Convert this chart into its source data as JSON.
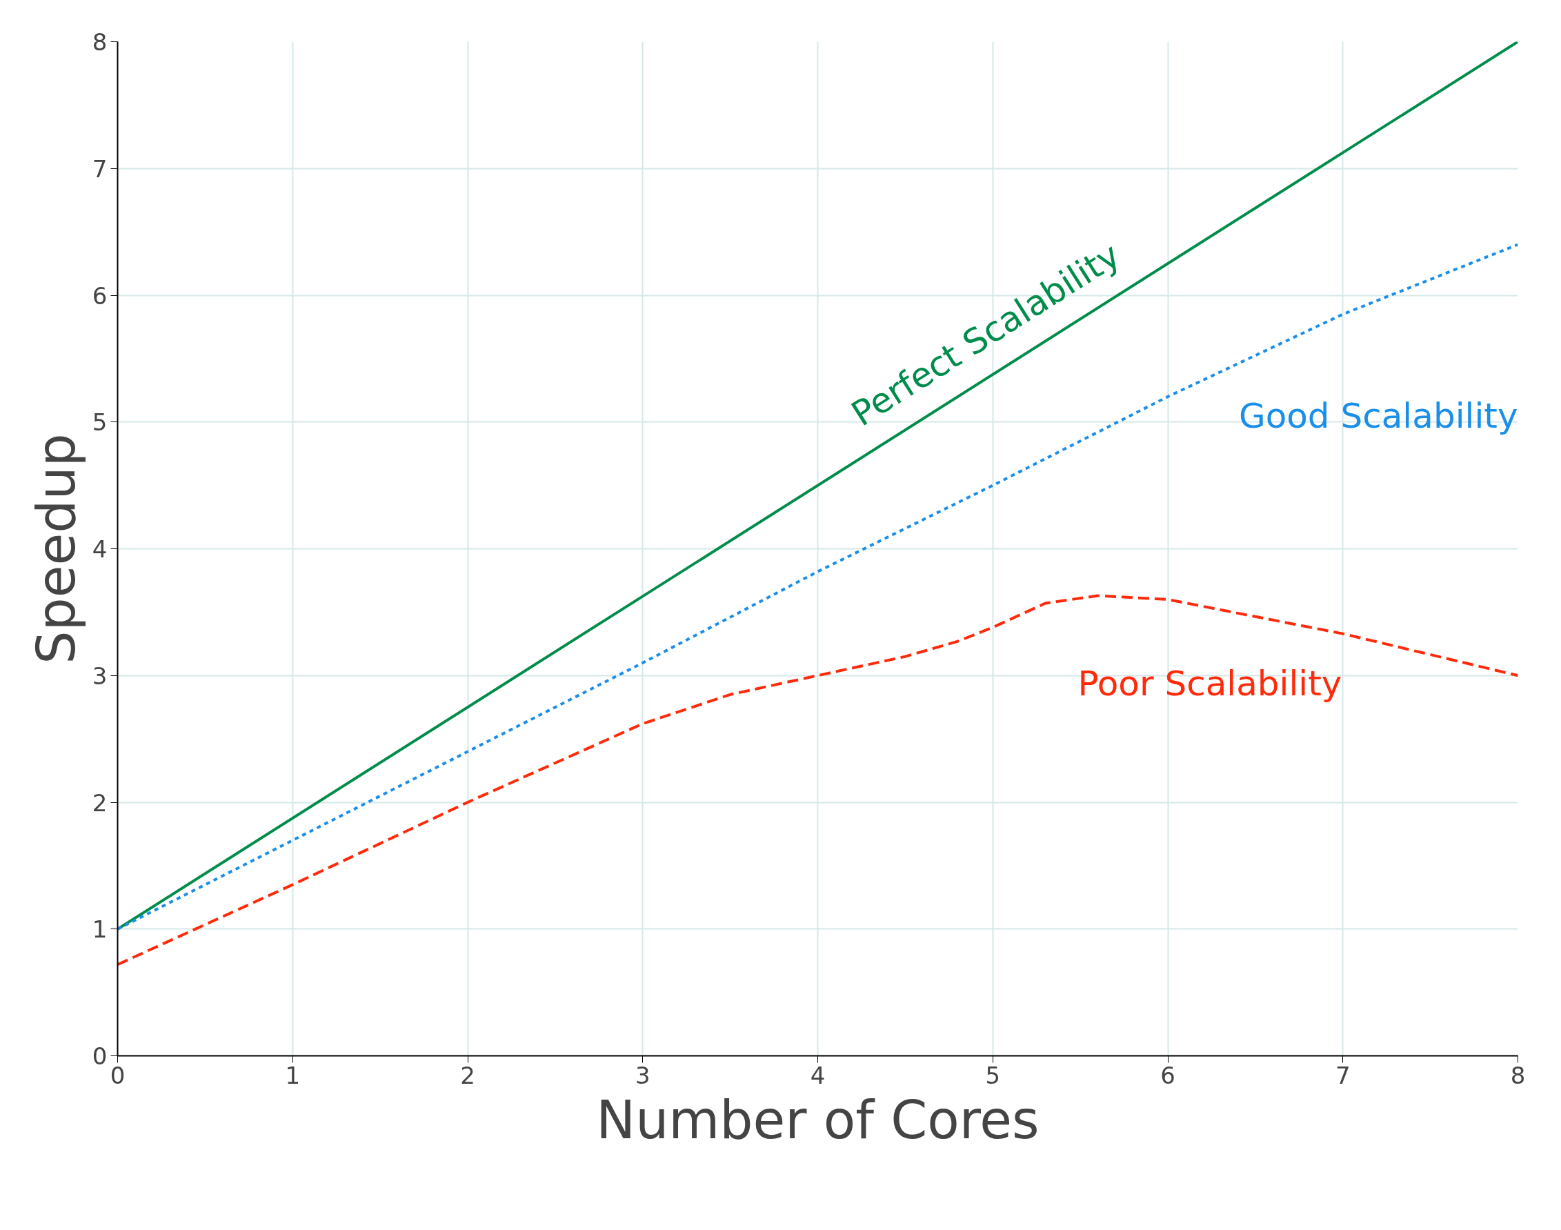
{
  "chart_data": {
    "type": "line",
    "xlabel": "Number of Cores",
    "ylabel": "Speedup",
    "xlim": [
      0,
      8
    ],
    "ylim": [
      0,
      8
    ],
    "xticks": [
      0,
      1,
      2,
      3,
      4,
      5,
      6,
      7,
      8
    ],
    "yticks": [
      0,
      1,
      2,
      3,
      4,
      5,
      6,
      7,
      8
    ],
    "grid": true,
    "marker": "none",
    "series": [
      {
        "name": "Perfect Scalability",
        "color": "#008c4a",
        "line_style": "solid",
        "x": [
          0,
          8
        ],
        "values": [
          1,
          8
        ]
      },
      {
        "name": "Good Scalability",
        "color": "#1a8fe8",
        "line_style": "dotted",
        "x": [
          0,
          1,
          2,
          3,
          4,
          5,
          6,
          7,
          8
        ],
        "values": [
          1,
          1.7,
          2.4,
          3.1,
          3.82,
          4.5,
          5.2,
          5.85,
          6.4
        ]
      },
      {
        "name": "Poor Scalability",
        "color": "#ff2a0a",
        "line_style": "dashed",
        "x": [
          0,
          1,
          2,
          3,
          3.5,
          4,
          4.5,
          4.8,
          5,
          5.3,
          5.6,
          6,
          7,
          8
        ],
        "values": [
          0.72,
          1.35,
          2.0,
          2.62,
          2.85,
          3.0,
          3.15,
          3.27,
          3.38,
          3.57,
          3.63,
          3.6,
          3.33,
          3.0
        ]
      }
    ]
  }
}
